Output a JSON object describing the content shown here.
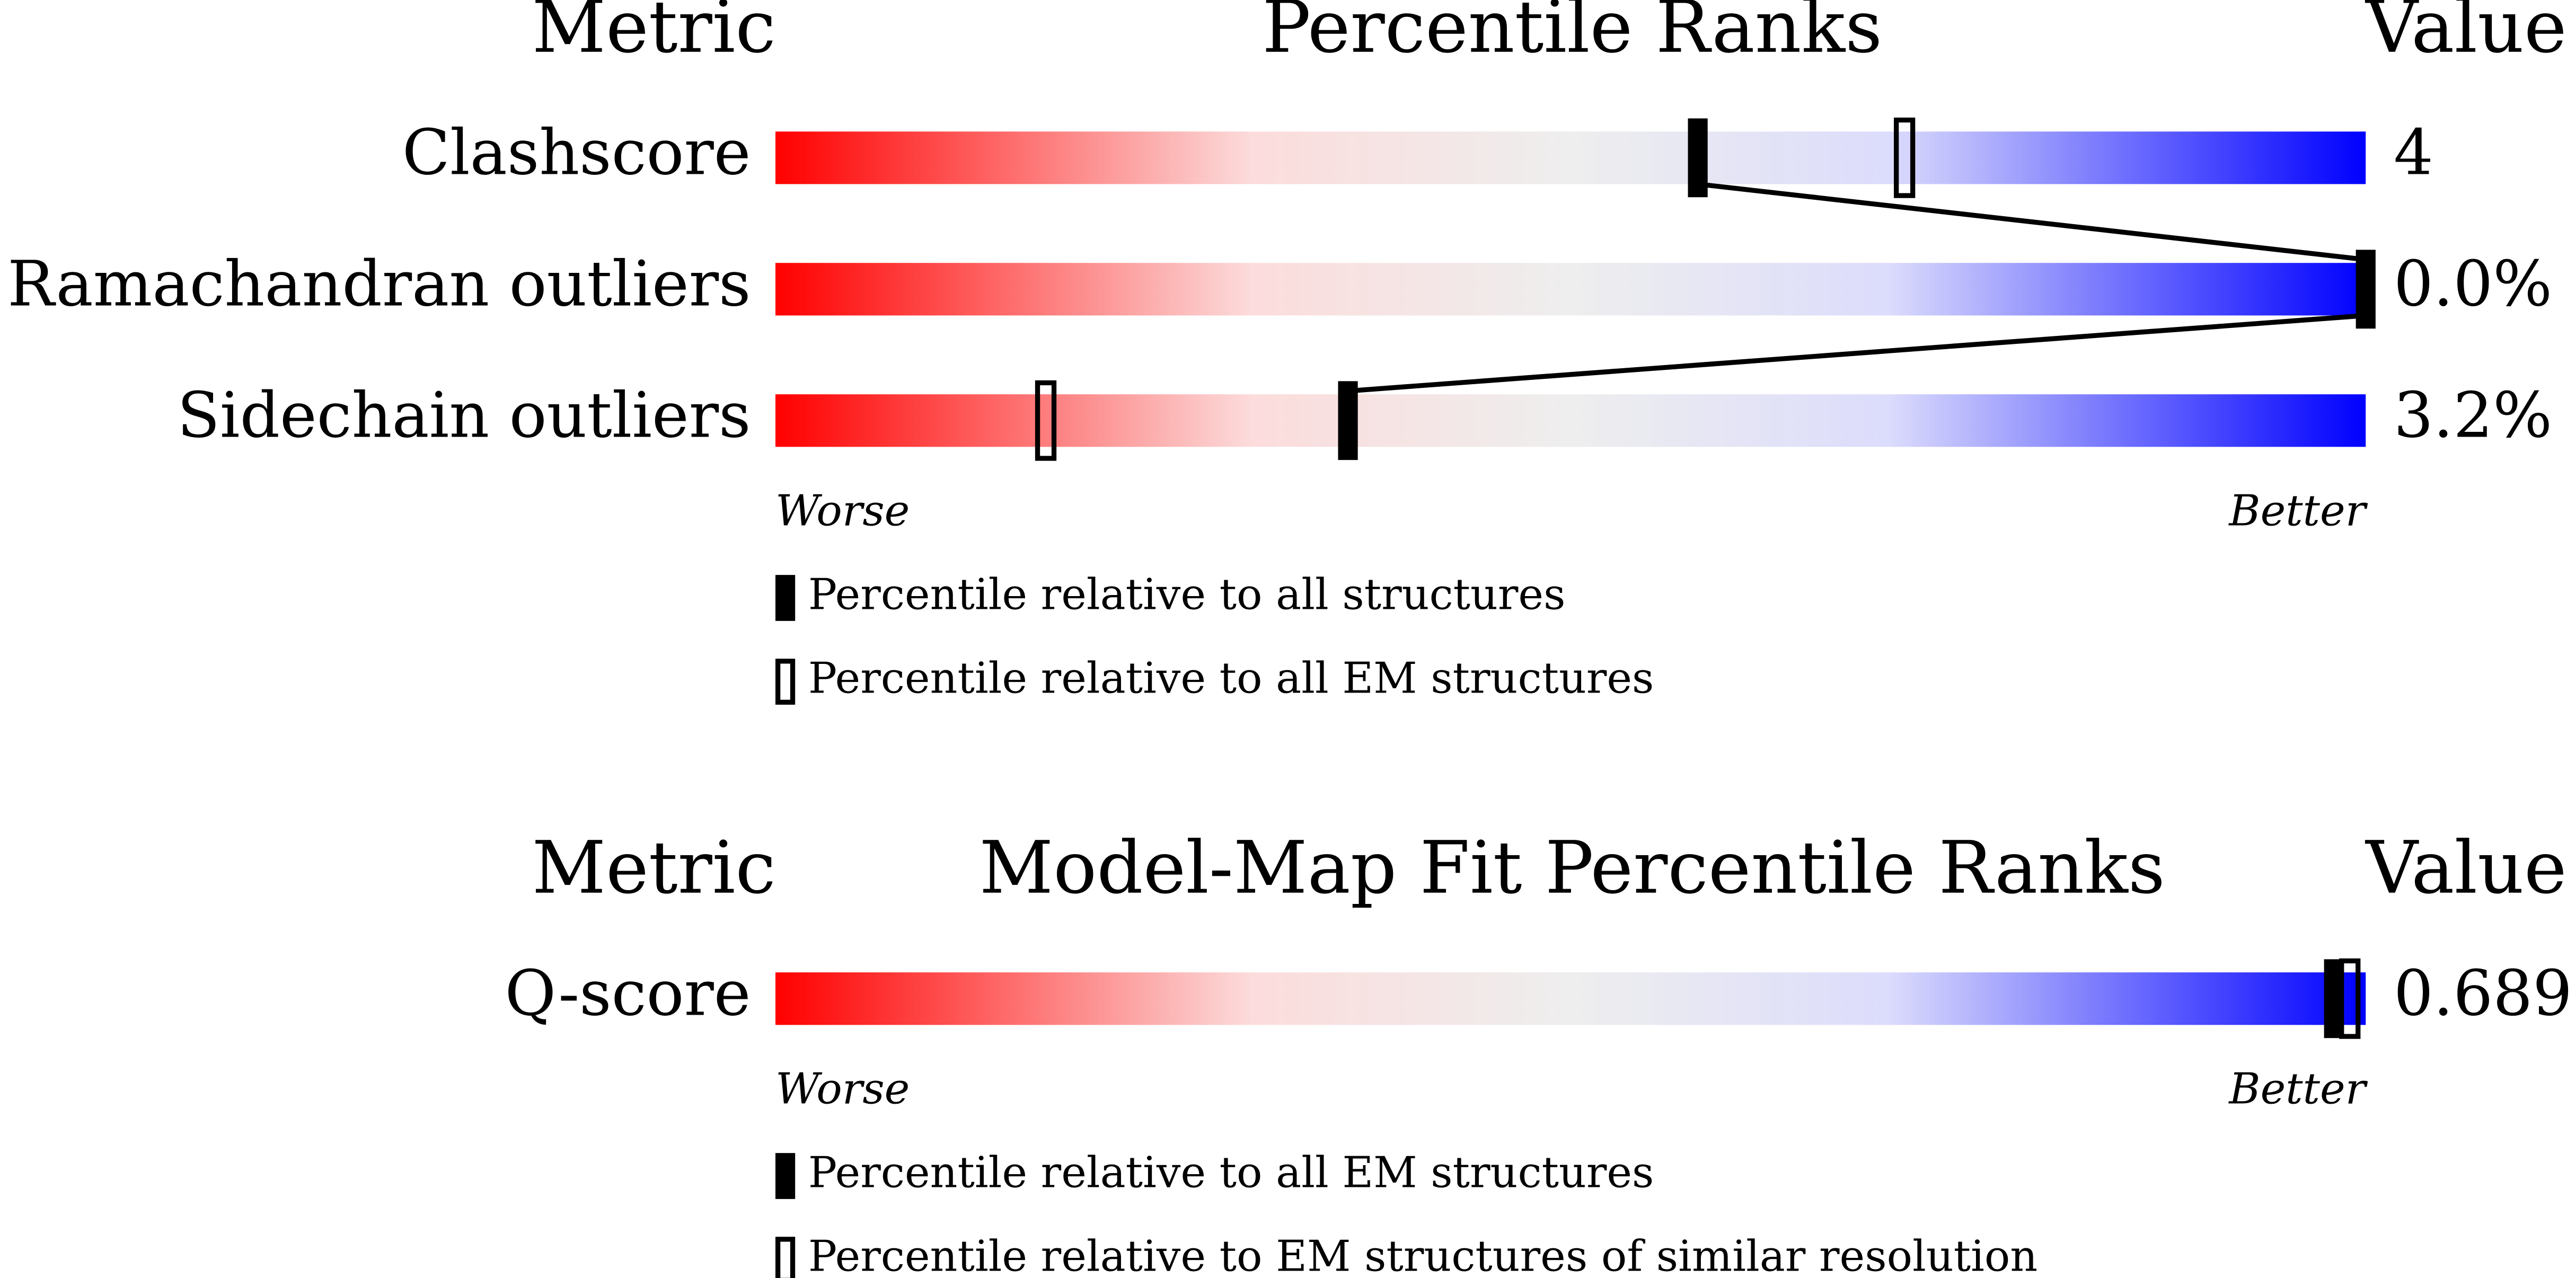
{
  "panels": [
    {
      "header": {
        "metric": "Metric",
        "title": "Percentile Ranks",
        "value": "Value"
      },
      "xlim": [
        0,
        100
      ],
      "rows": [
        {
          "metric": "Clashscore",
          "value": "4",
          "percentile_all": 58,
          "percentile_secondary": 71
        },
        {
          "metric": "Ramachandran outliers",
          "value": "0.0%",
          "percentile_all": 100,
          "percentile_secondary": null
        },
        {
          "metric": "Sidechain outliers",
          "value": "3.2%",
          "percentile_all": 36,
          "percentile_secondary": 17
        }
      ],
      "worse": "Worse",
      "better": "Better",
      "legend": [
        {
          "label": "Percentile relative to all structures",
          "style": "filled"
        },
        {
          "label": "Percentile relative to all EM structures",
          "style": "open"
        }
      ]
    },
    {
      "header": {
        "metric": "Metric",
        "title": "Model-Map Fit Percentile Ranks",
        "value": "Value"
      },
      "xlim": [
        0,
        100
      ],
      "rows": [
        {
          "metric": "Q-score",
          "value": "0.689",
          "percentile_all": 98,
          "percentile_secondary": 99
        }
      ],
      "worse": "Worse",
      "better": "Better",
      "legend": [
        {
          "label": "Percentile relative to all EM structures",
          "style": "filled"
        },
        {
          "label": "Percentile relative to EM structures of similar resolution",
          "style": "open"
        }
      ]
    }
  ]
}
